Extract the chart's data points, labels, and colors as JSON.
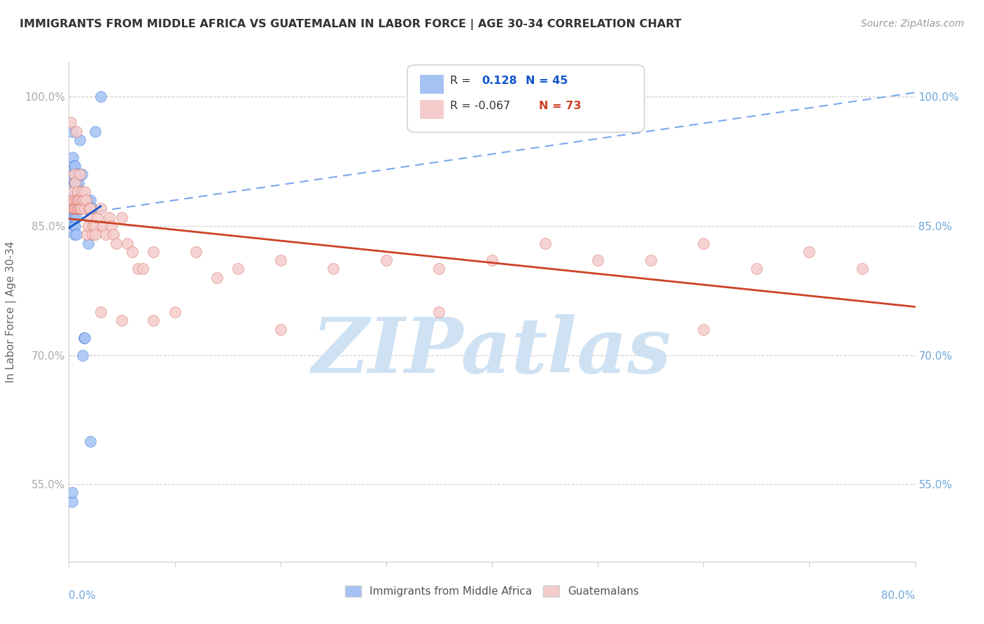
{
  "title": "IMMIGRANTS FROM MIDDLE AFRICA VS GUATEMALAN IN LABOR FORCE | AGE 30-34 CORRELATION CHART",
  "source": "Source: ZipAtlas.com",
  "ylabel": "In Labor Force | Age 30-34",
  "xlim": [
    0.0,
    0.8
  ],
  "ylim": [
    0.46,
    1.04
  ],
  "blue_color": "#a4c2f4",
  "pink_color": "#f4cccc",
  "blue_line_color": "#1155cc",
  "pink_line_color": "#cc4125",
  "dashed_line_color": "#6d9eeb",
  "watermark_color": "#cfe2f3",
  "watermark_text": "ZIPatlas",
  "background_color": "#ffffff",
  "grid_color": "#cccccc",
  "blue_R": 0.128,
  "blue_N": 45,
  "pink_R": -0.067,
  "pink_N": 73,
  "blue_scatter_x": [
    0.002,
    0.003,
    0.003,
    0.003,
    0.004,
    0.004,
    0.004,
    0.004,
    0.005,
    0.005,
    0.005,
    0.005,
    0.005,
    0.005,
    0.005,
    0.006,
    0.006,
    0.006,
    0.006,
    0.007,
    0.007,
    0.007,
    0.007,
    0.007,
    0.008,
    0.008,
    0.009,
    0.009,
    0.01,
    0.01,
    0.011,
    0.012,
    0.013,
    0.014,
    0.015,
    0.017,
    0.018,
    0.02,
    0.022,
    0.025,
    0.03,
    0.003,
    0.003,
    0.015,
    0.02
  ],
  "blue_scatter_y": [
    0.875,
    0.88,
    0.87,
    0.96,
    0.93,
    0.91,
    0.89,
    0.86,
    0.92,
    0.9,
    0.88,
    0.87,
    0.86,
    0.85,
    0.84,
    0.92,
    0.9,
    0.87,
    0.85,
    0.9,
    0.88,
    0.87,
    0.86,
    0.84,
    0.91,
    0.88,
    0.9,
    0.88,
    0.95,
    0.88,
    0.88,
    0.91,
    0.7,
    0.72,
    0.88,
    0.88,
    0.83,
    0.88,
    0.87,
    0.96,
    1.0,
    0.53,
    0.54,
    0.72,
    0.6
  ],
  "pink_scatter_x": [
    0.002,
    0.003,
    0.004,
    0.004,
    0.005,
    0.005,
    0.005,
    0.006,
    0.006,
    0.007,
    0.007,
    0.007,
    0.008,
    0.008,
    0.008,
    0.009,
    0.009,
    0.01,
    0.01,
    0.011,
    0.011,
    0.012,
    0.012,
    0.013,
    0.014,
    0.015,
    0.015,
    0.016,
    0.017,
    0.018,
    0.019,
    0.02,
    0.02,
    0.022,
    0.023,
    0.025,
    0.025,
    0.027,
    0.03,
    0.032,
    0.035,
    0.038,
    0.04,
    0.042,
    0.045,
    0.05,
    0.055,
    0.06,
    0.065,
    0.07,
    0.08,
    0.12,
    0.14,
    0.16,
    0.2,
    0.25,
    0.3,
    0.35,
    0.4,
    0.45,
    0.5,
    0.55,
    0.6,
    0.65,
    0.7,
    0.03,
    0.05,
    0.08,
    0.1,
    0.2,
    0.35,
    0.6,
    0.75
  ],
  "pink_scatter_y": [
    0.97,
    0.88,
    0.89,
    0.87,
    0.91,
    0.88,
    0.87,
    0.9,
    0.87,
    0.96,
    0.88,
    0.87,
    0.89,
    0.88,
    0.87,
    0.88,
    0.87,
    0.91,
    0.87,
    0.88,
    0.87,
    0.89,
    0.87,
    0.88,
    0.88,
    0.89,
    0.87,
    0.88,
    0.84,
    0.85,
    0.87,
    0.87,
    0.86,
    0.84,
    0.85,
    0.85,
    0.84,
    0.86,
    0.87,
    0.85,
    0.84,
    0.86,
    0.85,
    0.84,
    0.83,
    0.86,
    0.83,
    0.82,
    0.8,
    0.8,
    0.82,
    0.82,
    0.79,
    0.8,
    0.81,
    0.8,
    0.81,
    0.8,
    0.81,
    0.83,
    0.81,
    0.81,
    0.83,
    0.8,
    0.82,
    0.75,
    0.74,
    0.74,
    0.75,
    0.73,
    0.75,
    0.73,
    0.8
  ],
  "ytick_vals": [
    0.55,
    0.7,
    0.85,
    1.0
  ],
  "ytick_labels": [
    "55.0%",
    "70.0%",
    "85.0%",
    "100.0%"
  ]
}
